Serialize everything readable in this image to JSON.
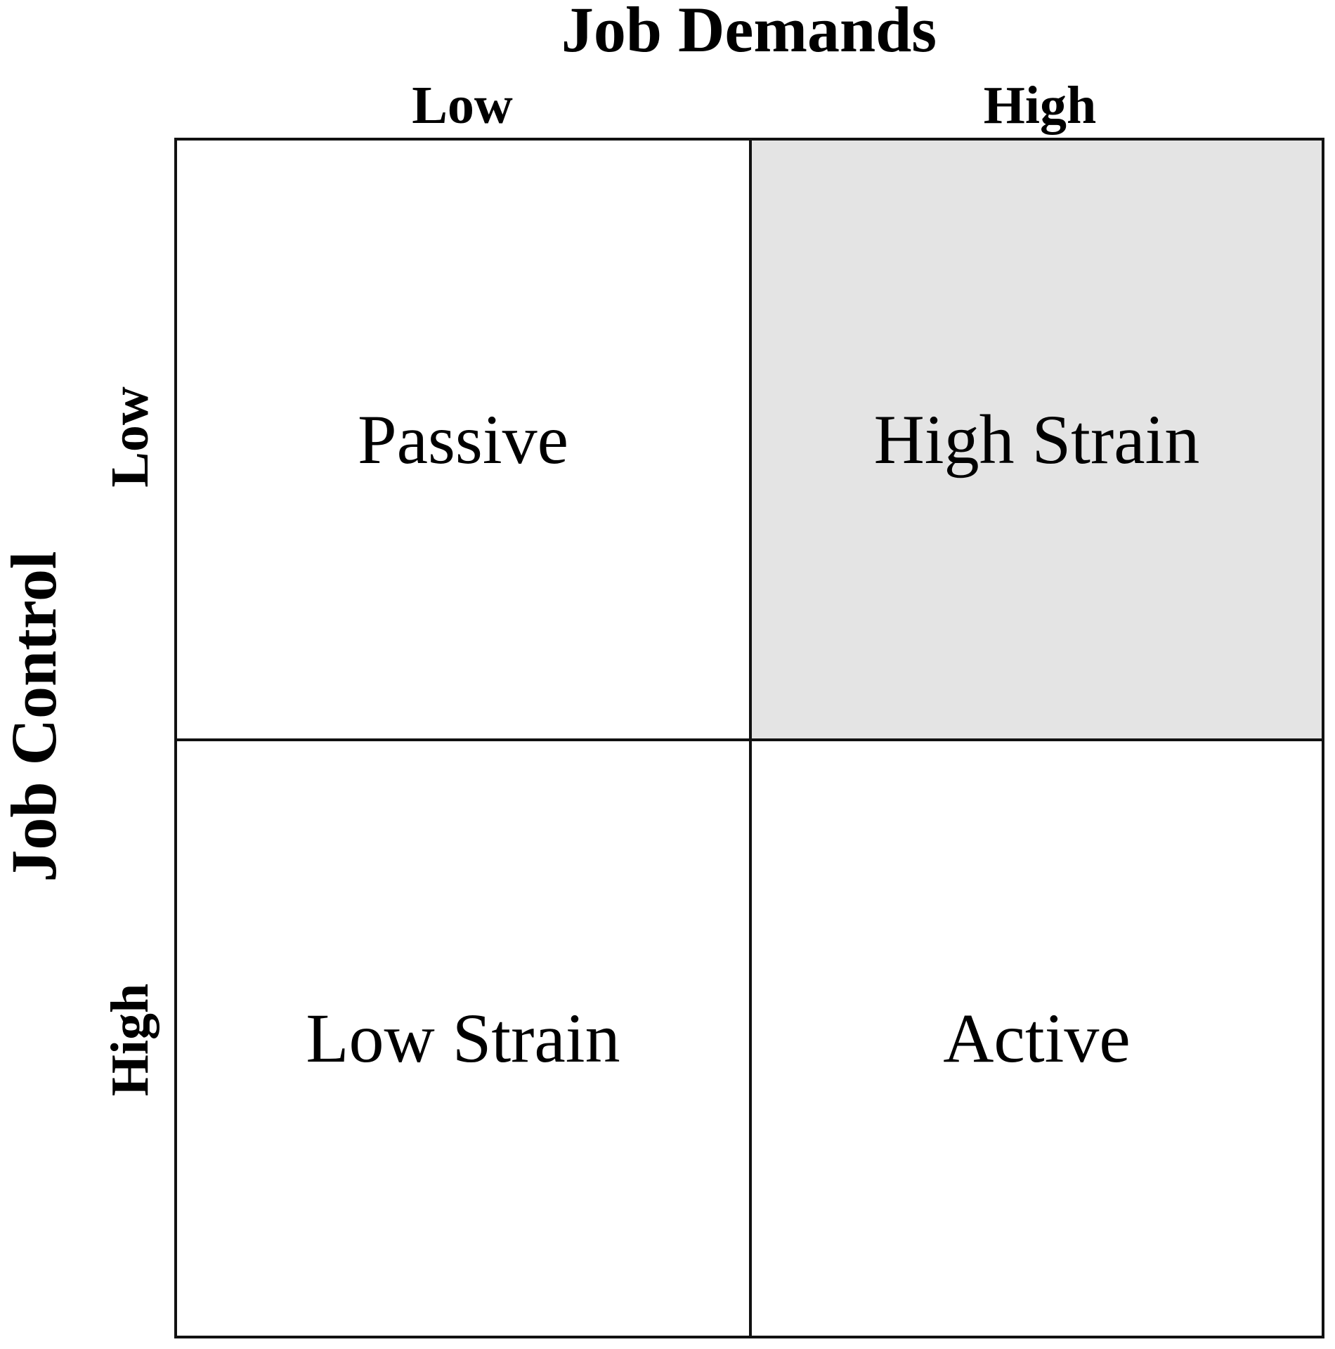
{
  "figure": {
    "x_axis": {
      "title": "Job Demands",
      "left_label": "Low",
      "right_label": "High"
    },
    "y_axis": {
      "title": "Job Control",
      "top_label": "Low",
      "bottom_label": "High"
    },
    "quadrants": {
      "top_left": {
        "label": "Passive",
        "bg": "#ffffff",
        "highlighted": false
      },
      "top_right": {
        "label": "High Strain",
        "bg": "#e4e4e4",
        "highlighted": true
      },
      "bottom_left": {
        "label": "Low Strain",
        "bg": "#ffffff",
        "highlighted": false
      },
      "bottom_right": {
        "label": "Active",
        "bg": "#ffffff",
        "highlighted": false
      }
    },
    "colors": {
      "line": "#111111",
      "text": "#000000",
      "background": "#ffffff",
      "highlight": "#e4e4e4"
    }
  }
}
